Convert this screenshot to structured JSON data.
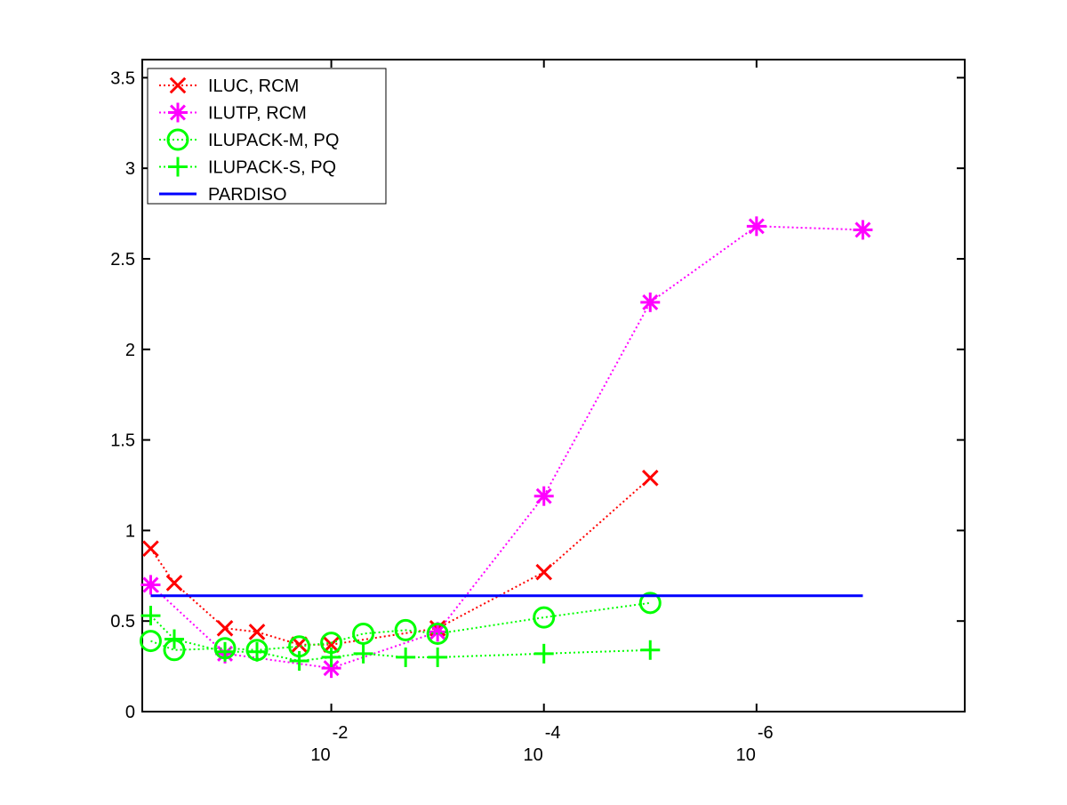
{
  "chart_data": {
    "type": "line",
    "title": "",
    "xlabel": "",
    "ylabel": "",
    "x_scale": "log",
    "x_direction": "decreasing",
    "xlim": [
      0.6,
      1.1e-08
    ],
    "ylim": [
      0,
      3.6
    ],
    "x_ticks": [
      {
        "value": 0.01,
        "base": "10",
        "exponent": "-2"
      },
      {
        "value": 0.0001,
        "base": "10",
        "exponent": "-4"
      },
      {
        "value": 1e-06,
        "base": "10",
        "exponent": "-6"
      }
    ],
    "y_ticks": [
      {
        "value": 0,
        "label": "0"
      },
      {
        "value": 0.5,
        "label": "0.5"
      },
      {
        "value": 1,
        "label": "1"
      },
      {
        "value": 1.5,
        "label": "1.5"
      },
      {
        "value": 2,
        "label": "2"
      },
      {
        "value": 2.5,
        "label": "2.5"
      },
      {
        "value": 3,
        "label": "3"
      },
      {
        "value": 3.5,
        "label": "3.5"
      }
    ],
    "grid": false,
    "legend_position": "top-left",
    "series": [
      {
        "name": "ILUC, RCM",
        "color": "#ff0000",
        "marker": "x",
        "line_style": "dotted",
        "x": [
          0.5,
          0.3,
          0.1,
          0.05,
          0.02,
          0.01,
          0.001,
          0.0001,
          1e-05
        ],
        "y": [
          0.9,
          0.71,
          0.46,
          0.44,
          0.37,
          0.37,
          0.46,
          0.77,
          1.29
        ]
      },
      {
        "name": "ILUTP, RCM",
        "color": "#ff00ff",
        "marker": "asterisk",
        "line_style": "dotted",
        "x": [
          0.5,
          0.1,
          0.01,
          0.001,
          0.0001,
          1e-05,
          1e-06,
          1e-07
        ],
        "y": [
          0.7,
          0.32,
          0.24,
          0.44,
          1.19,
          2.26,
          2.68,
          2.66
        ]
      },
      {
        "name": "ILUPACK-M, PQ",
        "color": "#00ff00",
        "marker": "circle",
        "line_style": "dotted",
        "x": [
          0.5,
          0.3,
          0.1,
          0.05,
          0.02,
          0.01,
          0.005,
          0.002,
          0.001,
          0.0001,
          1e-05
        ],
        "y": [
          0.39,
          0.34,
          0.35,
          0.34,
          0.36,
          0.38,
          0.43,
          0.45,
          0.43,
          0.52,
          0.6
        ]
      },
      {
        "name": "ILUPACK-S, PQ",
        "color": "#00ff00",
        "marker": "plus",
        "line_style": "dotted",
        "x": [
          0.5,
          0.3,
          0.1,
          0.05,
          0.02,
          0.01,
          0.005,
          0.002,
          0.001,
          0.0001,
          1e-05
        ],
        "y": [
          0.53,
          0.4,
          0.33,
          0.33,
          0.28,
          0.3,
          0.32,
          0.3,
          0.3,
          0.32,
          0.34
        ]
      },
      {
        "name": "PARDISO",
        "color": "#0000ff",
        "marker": "none",
        "line_style": "solid",
        "x": [
          0.5,
          1e-07
        ],
        "y": [
          0.64,
          0.64
        ]
      }
    ]
  }
}
